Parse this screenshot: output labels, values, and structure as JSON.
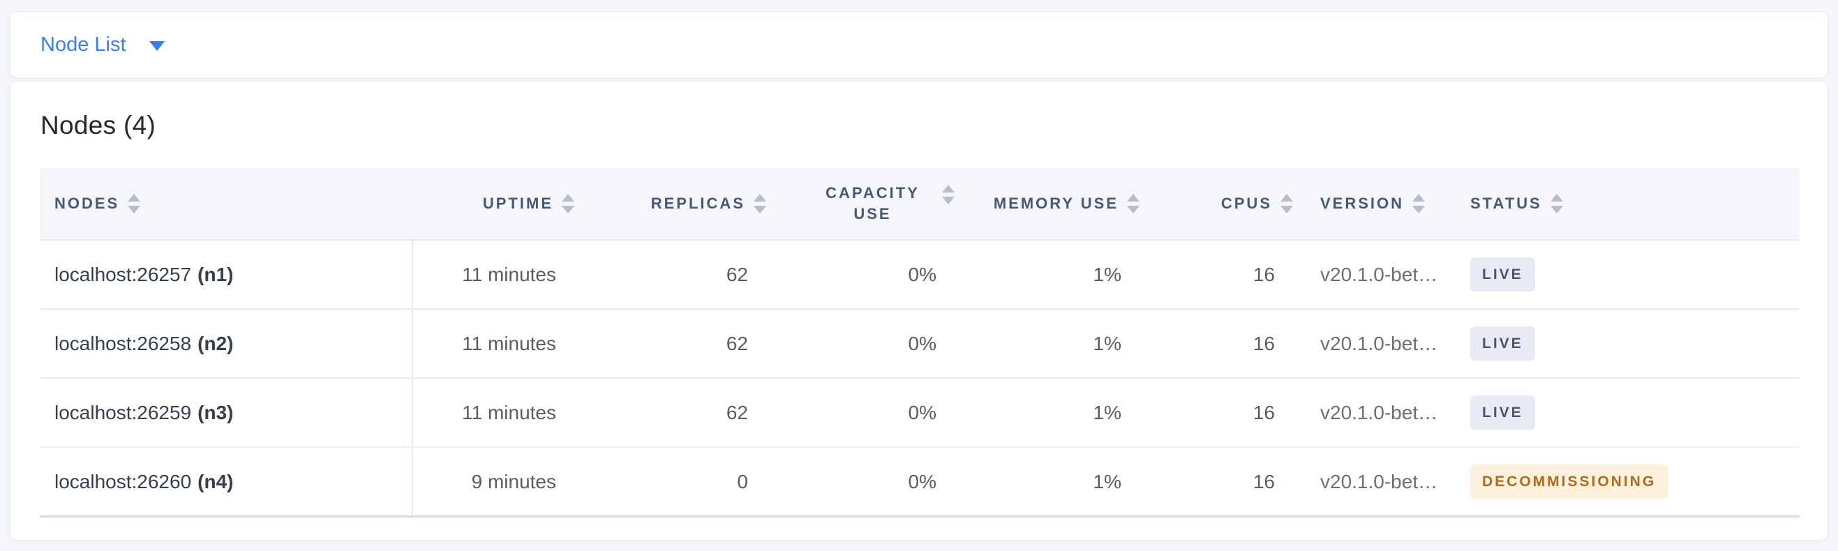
{
  "topbar": {
    "dropdown_label": "Node List"
  },
  "main": {
    "title": "Nodes (4)",
    "table": {
      "columns": [
        {
          "id": "nodes",
          "label": "NODES",
          "align": "left"
        },
        {
          "id": "uptime",
          "label": "UPTIME",
          "align": "right"
        },
        {
          "id": "replicas",
          "label": "REPLICAS",
          "align": "right"
        },
        {
          "id": "capacity-use",
          "label": "CAPACITY USE",
          "align": "right",
          "wrap": true
        },
        {
          "id": "memory-use",
          "label": "MEMORY USE",
          "align": "right"
        },
        {
          "id": "cpus",
          "label": "CPUS",
          "align": "right"
        },
        {
          "id": "version",
          "label": "VERSION",
          "align": "left"
        },
        {
          "id": "status",
          "label": "STATUS",
          "align": "left"
        }
      ],
      "rows": [
        {
          "node_address": "localhost:26257",
          "node_id": "(n1)",
          "uptime": "11 minutes",
          "replicas": "62",
          "capacity_use": "0%",
          "memory_use": "1%",
          "cpus": "16",
          "version": "v20.1.0-bet…",
          "status_label": "LIVE",
          "status_type": "live"
        },
        {
          "node_address": "localhost:26258",
          "node_id": "(n2)",
          "uptime": "11 minutes",
          "replicas": "62",
          "capacity_use": "0%",
          "memory_use": "1%",
          "cpus": "16",
          "version": "v20.1.0-bet…",
          "status_label": "LIVE",
          "status_type": "live"
        },
        {
          "node_address": "localhost:26259",
          "node_id": "(n3)",
          "uptime": "11 minutes",
          "replicas": "62",
          "capacity_use": "0%",
          "memory_use": "1%",
          "cpus": "16",
          "version": "v20.1.0-bet…",
          "status_label": "LIVE",
          "status_type": "live"
        },
        {
          "node_address": "localhost:26260",
          "node_id": "(n4)",
          "uptime": "9 minutes",
          "replicas": "0",
          "capacity_use": "0%",
          "memory_use": "1%",
          "cpus": "16",
          "version": "v20.1.0-bet…",
          "status_label": "DECOMMISSIONING",
          "status_type": "decommissioning"
        }
      ]
    }
  },
  "icons": {
    "dropdown_caret": "▾",
    "sort_up": "▲",
    "sort_down": "▼"
  },
  "colors": {
    "page_bg": "#f4f6fa",
    "card_bg": "#ffffff",
    "accent_blue": "#3b7de9",
    "header_text": "#475872",
    "header_bg": "#f5f6fa",
    "cell_text": "#585c63",
    "node_text": "#36404d",
    "live_badge_bg": "#e8ebf5",
    "live_badge_text": "#4a5569",
    "decommissioning_badge_bg": "#fcf1dd",
    "decommissioning_badge_text": "#a96c20"
  }
}
